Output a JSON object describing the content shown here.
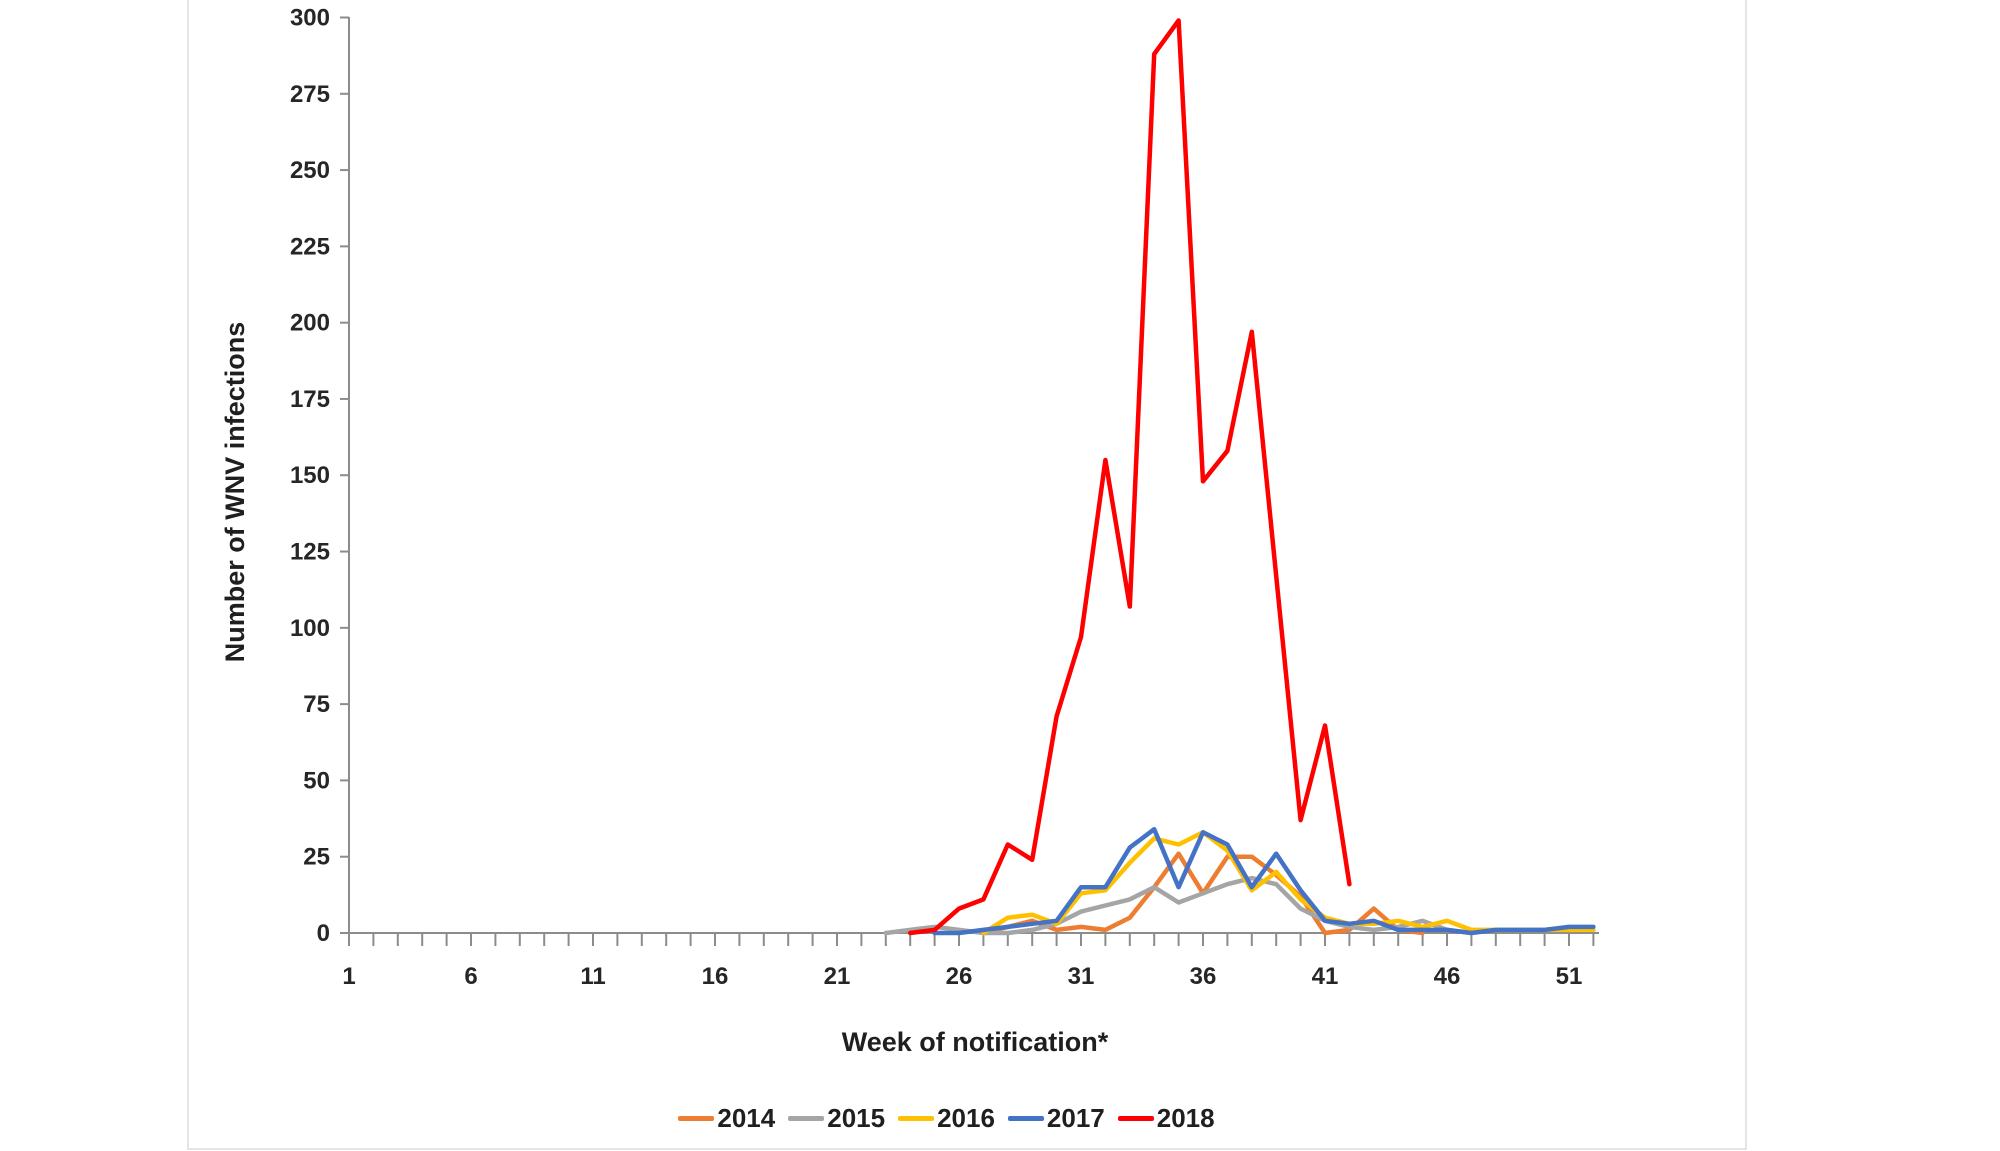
{
  "chart_data": {
    "type": "line",
    "title": "",
    "xlabel": "Week of notification*",
    "ylabel": "Number of WNV infections",
    "x_axis": {
      "min": 1,
      "max": 52,
      "labeled_ticks": [
        1,
        6,
        11,
        16,
        21,
        26,
        31,
        36,
        41,
        46,
        51
      ],
      "minor_tick_every": 1
    },
    "y_axis": {
      "min": 0,
      "max": 300,
      "tick_step": 25,
      "ticks": [
        0,
        25,
        50,
        75,
        100,
        125,
        150,
        175,
        200,
        225,
        250,
        275,
        300
      ]
    },
    "grid": false,
    "legend_position": "bottom-center",
    "colors": {
      "axis": "#8c8c8c",
      "tick": "#8c8c8c",
      "label_text": "#262626"
    },
    "series": [
      {
        "name": "2014",
        "color": "#ED7D31",
        "points": [
          [
            27,
            0
          ],
          [
            28,
            2
          ],
          [
            29,
            4
          ],
          [
            30,
            1
          ],
          [
            31,
            2
          ],
          [
            32,
            1
          ],
          [
            33,
            5
          ],
          [
            34,
            15
          ],
          [
            35,
            26
          ],
          [
            36,
            13
          ],
          [
            37,
            25
          ],
          [
            38,
            25
          ],
          [
            39,
            19
          ],
          [
            40,
            12
          ],
          [
            41,
            0
          ],
          [
            42,
            1
          ],
          [
            43,
            8
          ],
          [
            44,
            1
          ],
          [
            45,
            0
          ]
        ]
      },
      {
        "name": "2015",
        "color": "#A5A5A5",
        "points": [
          [
            23,
            0
          ],
          [
            24,
            1
          ],
          [
            25,
            2
          ],
          [
            26,
            1
          ],
          [
            27,
            0
          ],
          [
            28,
            0
          ],
          [
            29,
            1
          ],
          [
            30,
            3
          ],
          [
            31,
            7
          ],
          [
            32,
            9
          ],
          [
            33,
            11
          ],
          [
            34,
            15
          ],
          [
            35,
            10
          ],
          [
            36,
            13
          ],
          [
            37,
            16
          ],
          [
            38,
            18
          ],
          [
            39,
            16
          ],
          [
            40,
            8
          ],
          [
            41,
            4
          ],
          [
            42,
            2
          ],
          [
            43,
            1
          ],
          [
            44,
            2
          ],
          [
            45,
            4
          ],
          [
            46,
            1
          ],
          [
            47,
            0
          ]
        ]
      },
      {
        "name": "2016",
        "color": "#FFC000",
        "points": [
          [
            27,
            0
          ],
          [
            28,
            5
          ],
          [
            29,
            6
          ],
          [
            30,
            3
          ],
          [
            31,
            13
          ],
          [
            32,
            14
          ],
          [
            33,
            23
          ],
          [
            34,
            31
          ],
          [
            35,
            29
          ],
          [
            36,
            33
          ],
          [
            37,
            27
          ],
          [
            38,
            14
          ],
          [
            39,
            20
          ],
          [
            40,
            11
          ],
          [
            41,
            5
          ],
          [
            42,
            3
          ],
          [
            43,
            3
          ],
          [
            44,
            4
          ],
          [
            45,
            2
          ],
          [
            46,
            4
          ],
          [
            47,
            1
          ],
          [
            48,
            1
          ],
          [
            49,
            1
          ],
          [
            50,
            1
          ],
          [
            51,
            1
          ],
          [
            52,
            1
          ]
        ]
      },
      {
        "name": "2017",
        "color": "#4472C4",
        "points": [
          [
            25,
            0
          ],
          [
            26,
            0
          ],
          [
            27,
            1
          ],
          [
            28,
            2
          ],
          [
            29,
            3
          ],
          [
            30,
            4
          ],
          [
            31,
            15
          ],
          [
            32,
            15
          ],
          [
            33,
            28
          ],
          [
            34,
            34
          ],
          [
            35,
            15
          ],
          [
            36,
            33
          ],
          [
            37,
            29
          ],
          [
            38,
            15
          ],
          [
            39,
            26
          ],
          [
            40,
            14
          ],
          [
            41,
            4
          ],
          [
            42,
            3
          ],
          [
            43,
            4
          ],
          [
            44,
            1
          ],
          [
            45,
            1
          ],
          [
            46,
            1
          ],
          [
            47,
            0
          ],
          [
            48,
            1
          ],
          [
            49,
            1
          ],
          [
            50,
            1
          ],
          [
            51,
            2
          ],
          [
            52,
            2
          ]
        ]
      },
      {
        "name": "2018",
        "color": "#FF0000",
        "points": [
          [
            24,
            0
          ],
          [
            25,
            1
          ],
          [
            26,
            8
          ],
          [
            27,
            11
          ],
          [
            28,
            29
          ],
          [
            29,
            24
          ],
          [
            30,
            71
          ],
          [
            31,
            97
          ],
          [
            32,
            155
          ],
          [
            33,
            107
          ],
          [
            34,
            288
          ],
          [
            35,
            299
          ],
          [
            36,
            148
          ],
          [
            37,
            158
          ],
          [
            38,
            197
          ],
          [
            39,
            117
          ],
          [
            40,
            37
          ],
          [
            41,
            68
          ],
          [
            42,
            16
          ]
        ]
      }
    ]
  }
}
